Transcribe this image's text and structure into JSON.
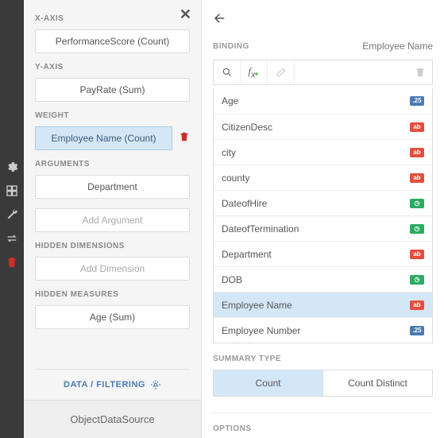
{
  "left": {
    "xaxis_label": "X-AXIS",
    "xaxis_value": "PerformanceScore (Count)",
    "yaxis_label": "Y-AXIS",
    "yaxis_value": "PayRate (Sum)",
    "weight_label": "WEIGHT",
    "weight_value": "Employee Name (Count)",
    "arguments_label": "ARGUMENTS",
    "arguments_value": "Department",
    "add_argument": "Add Argument",
    "hidden_dims_label": "HIDDEN DIMENSIONS",
    "add_dimension": "Add Dimension",
    "hidden_meas_label": "HIDDEN MEASURES",
    "hidden_meas_value": "Age (Sum)",
    "data_filtering": "DATA / FILTERING",
    "datasource": "ObjectDataSource"
  },
  "right": {
    "binding_label": "BINDING",
    "binding_name": "Employee Name",
    "fields": [
      {
        "label": "Age",
        "badge": ".25",
        "badge_color": "#4a7ab5"
      },
      {
        "label": "CitizenDesc",
        "badge": "ab",
        "badge_color": "#e74c3c"
      },
      {
        "label": "city",
        "badge": "ab",
        "badge_color": "#e74c3c"
      },
      {
        "label": "county",
        "badge": "ab",
        "badge_color": "#e74c3c"
      },
      {
        "label": "DateofHire",
        "badge": "◷",
        "badge_color": "#27ae60"
      },
      {
        "label": "DateofTermination",
        "badge": "◷",
        "badge_color": "#27ae60"
      },
      {
        "label": "Department",
        "badge": "ab",
        "badge_color": "#e74c3c"
      },
      {
        "label": "DOB",
        "badge": "◷",
        "badge_color": "#27ae60"
      },
      {
        "label": "Employee Name",
        "badge": "ab",
        "badge_color": "#e74c3c",
        "selected": true
      },
      {
        "label": "Employee Number",
        "badge": ".25",
        "badge_color": "#4a7ab5"
      }
    ],
    "summary_label": "SUMMARY TYPE",
    "summary_count": "Count",
    "summary_distinct": "Count Distinct",
    "options_label": "OPTIONS"
  }
}
